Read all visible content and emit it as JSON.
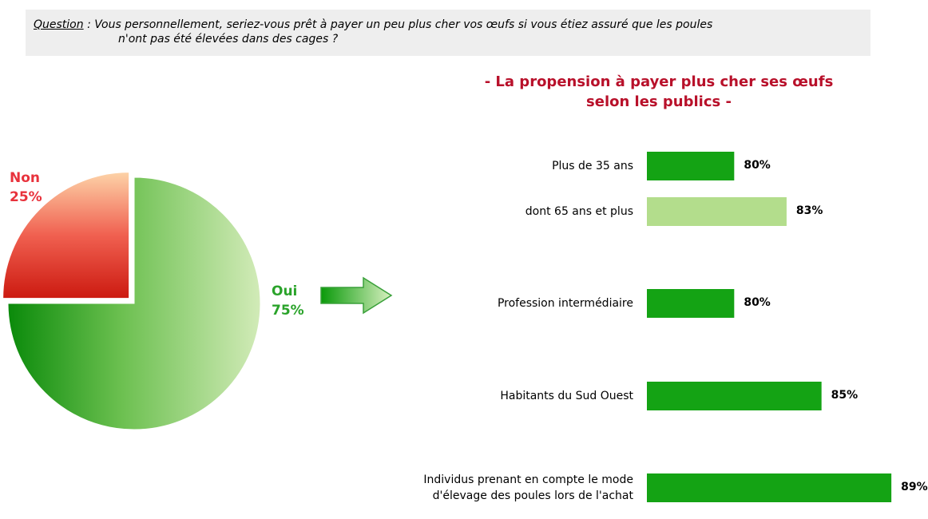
{
  "question": {
    "label": "Question",
    "text": " : Vous personnellement, seriez-vous prêt à payer un peu plus cher vos œufs si vous étiez assuré que les poules\nn'ont pas été élevées dans des cages ?"
  },
  "chart_data": [
    {
      "type": "pie",
      "categories": [
        "Oui",
        "Non"
      ],
      "values": [
        75,
        25
      ],
      "value_labels": [
        "75%",
        "25%"
      ],
      "colors": [
        "#2aa32a",
        "#e8323c"
      ]
    },
    {
      "type": "bar",
      "title": [
        "- La propension à payer plus cher ses œufs",
        "selon les publics -"
      ],
      "categories": [
        "Plus de 35 ans",
        "dont 65 ans et plus",
        "Profession intermédiaire",
        "Habitants du Sud Ouest",
        "Individus prenant en compte le mode\nd'élevage des poules lors de l'achat"
      ],
      "values": [
        80,
        83,
        80,
        85,
        89
      ],
      "value_labels": [
        "80%",
        "83%",
        "80%",
        "85%",
        "89%"
      ],
      "colors": [
        "#14a314",
        "#b3dd8c",
        "#14a314",
        "#14a314",
        "#14a314"
      ],
      "xlim": [
        75,
        90
      ]
    }
  ]
}
